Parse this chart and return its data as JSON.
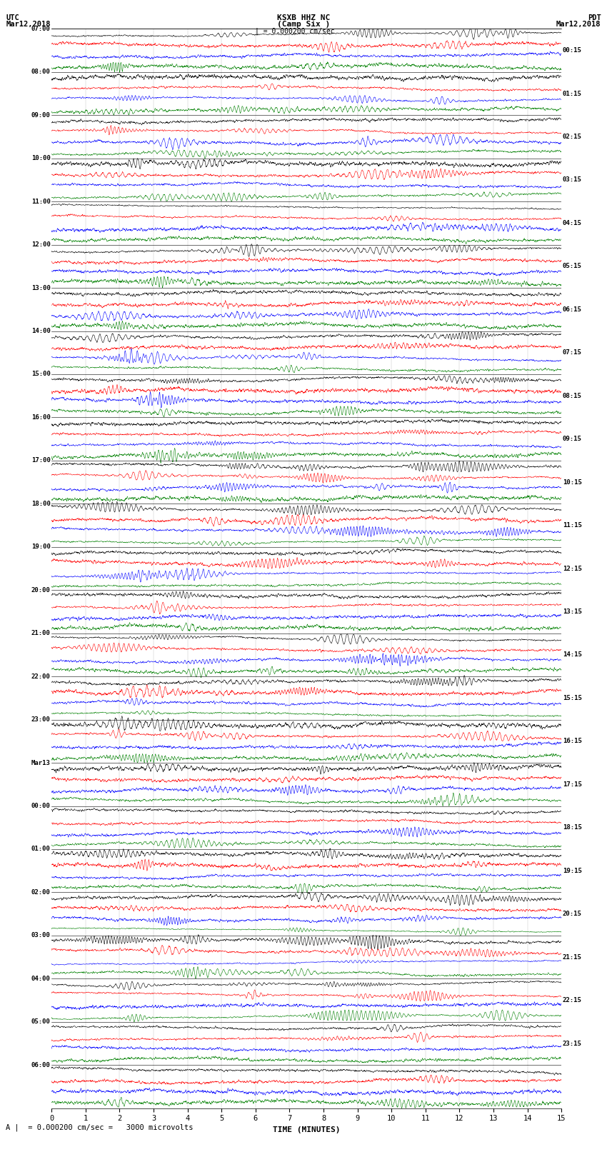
{
  "title_line1": "KSXB HHZ NC",
  "title_line2": "(Camp Six )",
  "top_left_line1": "UTC",
  "top_left_line2": "Mar12,2018",
  "top_right_line1": "PDT",
  "top_right_line2": "Mar12,2018",
  "scale_text": "| = 0.000200 cm/sec",
  "bottom_scale_text": "A |  = 0.000200 cm/sec =   3000 microvolts",
  "xlabel": "TIME (MINUTES)",
  "xticks": [
    0,
    1,
    2,
    3,
    4,
    5,
    6,
    7,
    8,
    9,
    10,
    11,
    12,
    13,
    14,
    15
  ],
  "time_minutes": 15,
  "colors": [
    "black",
    "red",
    "blue",
    "green"
  ],
  "left_times": [
    "07:00",
    "08:00",
    "09:00",
    "10:00",
    "11:00",
    "12:00",
    "13:00",
    "14:00",
    "15:00",
    "16:00",
    "17:00",
    "18:00",
    "19:00",
    "20:00",
    "21:00",
    "22:00",
    "23:00",
    "Mar13",
    "00:00",
    "01:00",
    "02:00",
    "03:00",
    "04:00",
    "05:00",
    "06:00"
  ],
  "right_times": [
    "00:15",
    "01:15",
    "02:15",
    "03:15",
    "04:15",
    "05:15",
    "06:15",
    "07:15",
    "08:15",
    "09:15",
    "10:15",
    "11:15",
    "12:15",
    "13:15",
    "14:15",
    "15:15",
    "16:15",
    "17:15",
    "18:15",
    "19:15",
    "20:15",
    "21:15",
    "22:15",
    "23:15"
  ],
  "n_rows": 25,
  "traces_per_row": 4,
  "noise_amplitude": 0.12,
  "background_color": "white",
  "fig_width": 8.5,
  "fig_height": 16.13,
  "dpi": 100
}
